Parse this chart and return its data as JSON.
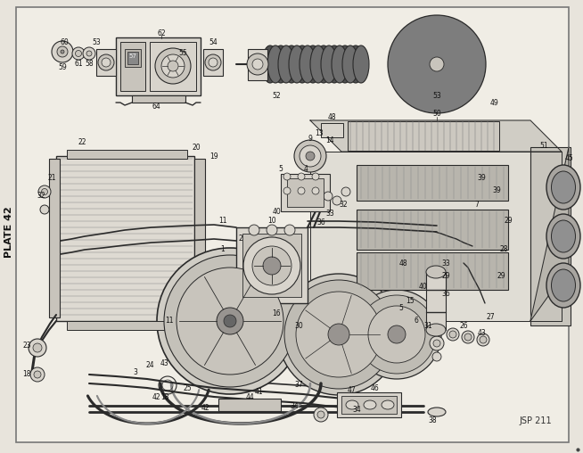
{
  "figsize": [
    6.54,
    5.08
  ],
  "dpi": 100,
  "bg_outer": "#e8e4dc",
  "bg_paper": "#f0ede5",
  "border_color": "#777777",
  "line_color": "#2a2a2a",
  "light_fill": "#d8d4cc",
  "mid_fill": "#c8c4bc",
  "dark_fill": "#989490",
  "title_text": "PLATE 42",
  "ref_text": "JSP 211",
  "dot_color": "#444444"
}
